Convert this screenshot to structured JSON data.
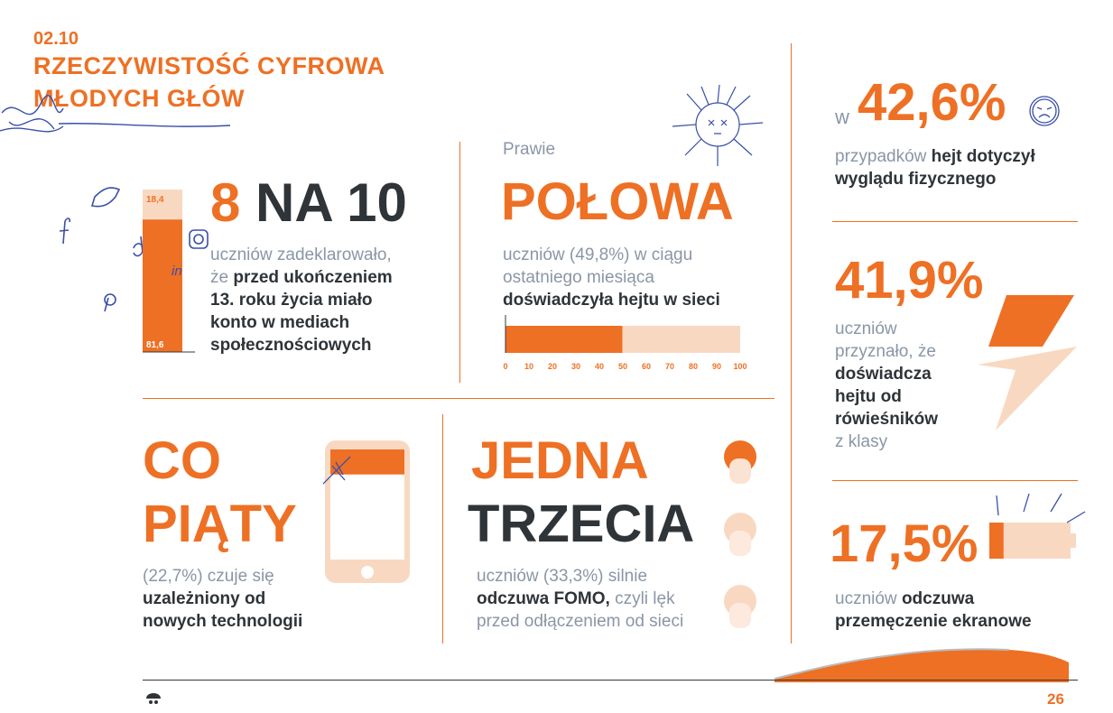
{
  "header": {
    "section_number": "02.10",
    "title_line1": "RZECZYWISTOŚĆ CYFROWA",
    "title_line2": "MŁODYCH GŁÓW"
  },
  "stat_8na10": {
    "big_orange": "8",
    "big_dark": "NA 10",
    "text_grey": "uczniów zadeklarowało,",
    "text_grey2": "że",
    "text_dark1": "przed ukończeniem",
    "text_dark2": "13. roku życia miało",
    "text_dark3": "konto w mediach",
    "text_dark4": "społecznościowych"
  },
  "stat_polowa": {
    "prefix": "Prawie",
    "big": "POŁOWA",
    "text_grey1": "uczniów (49,8%) w ciągu",
    "text_grey2": "ostatniego miesiąca",
    "text_dark": "doświadczyła hejtu w sieci"
  },
  "stat_copiaty": {
    "big1": "CO",
    "big2": "PIĄTY",
    "text_grey": "(22,7%) czuje się",
    "text_dark1": "uzależniony od",
    "text_dark2": "nowych technologii"
  },
  "stat_jednatrzecia": {
    "big1": "JEDNA",
    "big2": "TRZECIA",
    "text_grey1": "uczniów (33,3%) silnie",
    "text_dark": "odczuwa FOMO,",
    "text_grey2": "czyli lęk",
    "text_grey3": "przed odłączeniem od sieci"
  },
  "stat_426": {
    "prefix": "w",
    "big": "42,6%",
    "text_grey": "przypadków",
    "text_dark1": "hejt dotyczył",
    "text_dark2": "wyglądu fizycznego"
  },
  "stat_419": {
    "big": "41,9%",
    "text_grey1": "uczniów",
    "text_grey2": "przyznało, że",
    "text_dark1": "doświadcza",
    "text_dark2": "hejtu od",
    "text_dark3": "rówieśników",
    "text_grey3": "z klasy"
  },
  "stat_175": {
    "big": "17,5%",
    "text_grey": "uczniów",
    "text_dark1": "odczuwa",
    "text_dark2": "przemęczenie ekranowe"
  },
  "footer": {
    "page_number": "26"
  },
  "colors": {
    "accent": "#ee7024",
    "light_accent": "#f9d8c2",
    "dark": "#2f3438",
    "grey_text": "#8a96a6"
  },
  "chart_data": [
    {
      "type": "bar",
      "stacked": true,
      "orientation": "vertical",
      "series": [
        {
          "values": [
            81.6
          ],
          "color": "#ee7024"
        },
        {
          "values": [
            18.4
          ],
          "color": "#f9d8c2"
        }
      ],
      "data_labels": [
        "81,6",
        "18,4"
      ],
      "ylim": [
        0,
        100
      ]
    },
    {
      "type": "bar",
      "orientation": "horizontal",
      "values": [
        49.8
      ],
      "xlim": [
        0,
        100
      ],
      "ticks": [
        "0",
        "10",
        "20",
        "30",
        "40",
        "50",
        "60",
        "70",
        "80",
        "90",
        "100"
      ]
    },
    {
      "type": "bar",
      "orientation": "vertical",
      "values": [
        22.7
      ],
      "ylim": [
        0,
        100
      ]
    },
    {
      "type": "pictogram",
      "highlighted": 1,
      "total": 3
    },
    {
      "type": "bar",
      "orientation": "horizontal",
      "values": [
        17.5
      ],
      "xlim": [
        0,
        100
      ]
    }
  ]
}
